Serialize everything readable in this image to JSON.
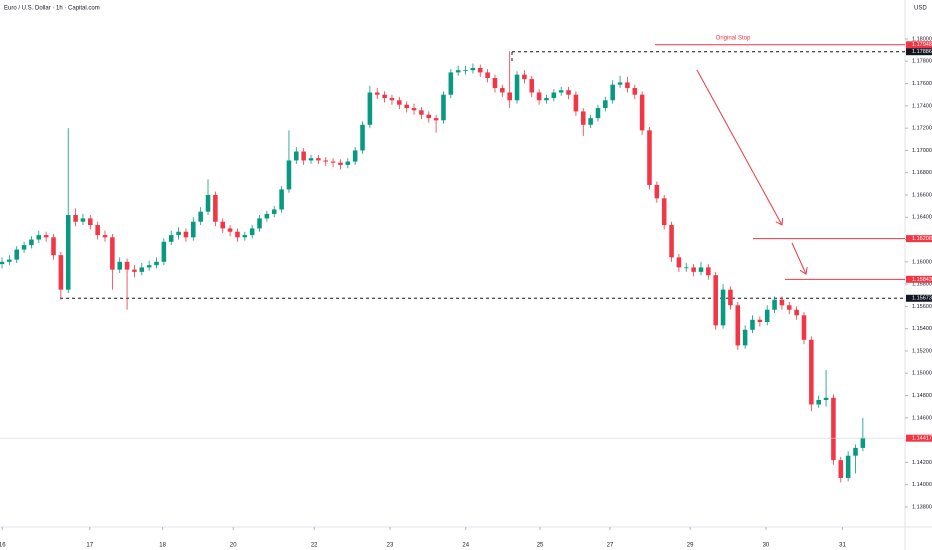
{
  "chart_data": {
    "type": "candlestick",
    "title": "Euro / U.S. Dollar · 1h · Capital.com",
    "currency": "USD",
    "up_color": "#089981",
    "down_color": "#f23645",
    "ylim": [
      1.1362,
      1.1835
    ],
    "xlim": [
      0,
      123
    ],
    "yticks": [
      {
        "value": 1.138,
        "label": "1.13800"
      },
      {
        "value": 1.14,
        "label": "1.14000"
      },
      {
        "value": 1.142,
        "label": "1.14200"
      },
      {
        "value": 1.144,
        "label": "1.14400"
      },
      {
        "value": 1.146,
        "label": "1.14600"
      },
      {
        "value": 1.148,
        "label": "1.14800"
      },
      {
        "value": 1.15,
        "label": "1.15000"
      },
      {
        "value": 1.152,
        "label": "1.15200"
      },
      {
        "value": 1.154,
        "label": "1.15400"
      },
      {
        "value": 1.156,
        "label": "1.15600"
      },
      {
        "value": 1.158,
        "label": "1.15800"
      },
      {
        "value": 1.16,
        "label": "1.16000"
      },
      {
        "value": 1.162,
        "label": "1.16200"
      },
      {
        "value": 1.164,
        "label": "1.16400"
      },
      {
        "value": 1.166,
        "label": "1.16600"
      },
      {
        "value": 1.168,
        "label": "1.16800"
      },
      {
        "value": 1.17,
        "label": "1.17000"
      },
      {
        "value": 1.172,
        "label": "1.17200"
      },
      {
        "value": 1.174,
        "label": "1.17400"
      },
      {
        "value": 1.176,
        "label": "1.17600"
      },
      {
        "value": 1.178,
        "label": "1.17800"
      },
      {
        "value": 1.18,
        "label": "1.18000"
      }
    ],
    "xticks": [
      {
        "value": 0.3,
        "label": "16"
      },
      {
        "value": 12.2,
        "label": "17"
      },
      {
        "value": 22.1,
        "label": "18"
      },
      {
        "value": 31.7,
        "label": "20"
      },
      {
        "value": 42.7,
        "label": "22"
      },
      {
        "value": 53,
        "label": "23"
      },
      {
        "value": 63.3,
        "label": "24"
      },
      {
        "value": 73.4,
        "label": "25"
      },
      {
        "value": 82.9,
        "label": "27"
      },
      {
        "value": 93.8,
        "label": "29"
      },
      {
        "value": 104.1,
        "label": "30"
      },
      {
        "value": 114.5,
        "label": "31"
      }
    ],
    "levels": [
      {
        "value": 1.17948,
        "color": "#f23645",
        "style": "solid",
        "annotation": "Original Stop"
      },
      {
        "value": 1.17886,
        "color": "#131722",
        "style": "dashed"
      },
      {
        "value": 1.16208,
        "color": "#f23645",
        "style": "solid"
      },
      {
        "value": 1.15843,
        "color": "#f23645",
        "style": "solid"
      },
      {
        "value": 1.15673,
        "color": "#131722",
        "style": "dashed"
      }
    ],
    "last_price": 1.14417,
    "candles": [
      [
        1.1598,
        1.1604,
        1.1594,
        1.16
      ],
      [
        1.16,
        1.1606,
        1.1597,
        1.1602
      ],
      [
        1.1602,
        1.1614,
        1.1599,
        1.1611
      ],
      [
        1.1611,
        1.1618,
        1.1608,
        1.1615
      ],
      [
        1.1615,
        1.1623,
        1.1612,
        1.162
      ],
      [
        1.162,
        1.1628,
        1.1617,
        1.1624
      ],
      [
        1.1624,
        1.1627,
        1.1618,
        1.1622
      ],
      [
        1.1622,
        1.1625,
        1.1602,
        1.1606
      ],
      [
        1.1606,
        1.1609,
        1.1566,
        1.1575
      ],
      [
        1.1575,
        1.172,
        1.1572,
        1.1642
      ],
      [
        1.1642,
        1.1648,
        1.1632,
        1.1636
      ],
      [
        1.1636,
        1.1643,
        1.1633,
        1.1639
      ],
      [
        1.1639,
        1.1642,
        1.1629,
        1.1633
      ],
      [
        1.1633,
        1.1636,
        1.162,
        1.1624
      ],
      [
        1.1624,
        1.1628,
        1.1618,
        1.1622
      ],
      [
        1.1622,
        1.1625,
        1.1575,
        1.1593
      ],
      [
        1.1593,
        1.1604,
        1.159,
        1.16
      ],
      [
        1.16,
        1.1603,
        1.1557,
        1.1593
      ],
      [
        1.1593,
        1.1597,
        1.1586,
        1.1591
      ],
      [
        1.1591,
        1.1599,
        1.1588,
        1.1595
      ],
      [
        1.1595,
        1.1601,
        1.1592,
        1.1597
      ],
      [
        1.1597,
        1.1604,
        1.1594,
        1.16
      ],
      [
        1.16,
        1.1621,
        1.1597,
        1.1618
      ],
      [
        1.1618,
        1.1628,
        1.1615,
        1.1624
      ],
      [
        1.1624,
        1.1631,
        1.162,
        1.1627
      ],
      [
        1.1627,
        1.163,
        1.1618,
        1.1622
      ],
      [
        1.1622,
        1.164,
        1.1619,
        1.1636
      ],
      [
        1.1636,
        1.1649,
        1.1633,
        1.1645
      ],
      [
        1.1645,
        1.1674,
        1.1642,
        1.166
      ],
      [
        1.166,
        1.1663,
        1.1632,
        1.1636
      ],
      [
        1.1636,
        1.1639,
        1.1626,
        1.163
      ],
      [
        1.163,
        1.1633,
        1.1623,
        1.1627
      ],
      [
        1.1627,
        1.163,
        1.1618,
        1.1622
      ],
      [
        1.1622,
        1.1627,
        1.1619,
        1.1624
      ],
      [
        1.1624,
        1.1633,
        1.1621,
        1.163
      ],
      [
        1.163,
        1.1642,
        1.1627,
        1.1639
      ],
      [
        1.1639,
        1.1646,
        1.1636,
        1.1643
      ],
      [
        1.1643,
        1.165,
        1.164,
        1.1647
      ],
      [
        1.1647,
        1.1668,
        1.1644,
        1.1665
      ],
      [
        1.1665,
        1.1718,
        1.1662,
        1.1691
      ],
      [
        1.1691,
        1.1703,
        1.1688,
        1.1699
      ],
      [
        1.1699,
        1.1702,
        1.1687,
        1.1691
      ],
      [
        1.1691,
        1.1696,
        1.1688,
        1.1693
      ],
      [
        1.1693,
        1.1696,
        1.1688,
        1.1691
      ],
      [
        1.1691,
        1.1694,
        1.1686,
        1.169
      ],
      [
        1.169,
        1.1693,
        1.1685,
        1.1689
      ],
      [
        1.1689,
        1.1692,
        1.1683,
        1.1687
      ],
      [
        1.1687,
        1.1693,
        1.1684,
        1.169
      ],
      [
        1.169,
        1.1703,
        1.1687,
        1.17
      ],
      [
        1.17,
        1.1726,
        1.1697,
        1.1723
      ],
      [
        1.1723,
        1.1758,
        1.172,
        1.1752
      ],
      [
        1.1752,
        1.1756,
        1.1746,
        1.175
      ],
      [
        1.175,
        1.1753,
        1.1743,
        1.1747
      ],
      [
        1.1747,
        1.175,
        1.1741,
        1.1745
      ],
      [
        1.1745,
        1.1748,
        1.1737,
        1.1741
      ],
      [
        1.1741,
        1.1744,
        1.1734,
        1.1738
      ],
      [
        1.1738,
        1.1742,
        1.1732,
        1.1736
      ],
      [
        1.1736,
        1.1739,
        1.1728,
        1.1732
      ],
      [
        1.1732,
        1.1735,
        1.1725,
        1.1729
      ],
      [
        1.1729,
        1.1732,
        1.1716,
        1.1727
      ],
      [
        1.1727,
        1.1753,
        1.1724,
        1.175
      ],
      [
        1.175,
        1.1773,
        1.1747,
        1.177
      ],
      [
        1.177,
        1.1776,
        1.1767,
        1.1772
      ],
      [
        1.1772,
        1.1776,
        1.1768,
        1.1772
      ],
      [
        1.1772,
        1.1778,
        1.1769,
        1.1774
      ],
      [
        1.1774,
        1.1777,
        1.1766,
        1.177
      ],
      [
        1.177,
        1.1773,
        1.1761,
        1.1765
      ],
      [
        1.1765,
        1.1768,
        1.1752,
        1.1756
      ],
      [
        1.1756,
        1.1759,
        1.1748,
        1.1752
      ],
      [
        1.1752,
        1.1789,
        1.1738,
        1.1745
      ],
      [
        1.1745,
        1.1771,
        1.1742,
        1.1768
      ],
      [
        1.1768,
        1.1772,
        1.176,
        1.1764
      ],
      [
        1.1764,
        1.1767,
        1.1748,
        1.1752
      ],
      [
        1.1752,
        1.1755,
        1.1741,
        1.1745
      ],
      [
        1.1745,
        1.175,
        1.1742,
        1.1747
      ],
      [
        1.1747,
        1.1755,
        1.1744,
        1.1752
      ],
      [
        1.1752,
        1.1757,
        1.1749,
        1.1754
      ],
      [
        1.1754,
        1.1757,
        1.1746,
        1.175
      ],
      [
        1.175,
        1.1753,
        1.1731,
        1.1735
      ],
      [
        1.1735,
        1.1738,
        1.1713,
        1.1723
      ],
      [
        1.1723,
        1.1732,
        1.172,
        1.1729
      ],
      [
        1.1729,
        1.1741,
        1.1726,
        1.1738
      ],
      [
        1.1738,
        1.1748,
        1.1735,
        1.1745
      ],
      [
        1.1745,
        1.1763,
        1.1742,
        1.1759
      ],
      [
        1.1759,
        1.1767,
        1.1756,
        1.1761
      ],
      [
        1.1761,
        1.1766,
        1.1752,
        1.1756
      ],
      [
        1.1756,
        1.1759,
        1.1746,
        1.175
      ],
      [
        1.175,
        1.1753,
        1.1714,
        1.1718
      ],
      [
        1.1718,
        1.1721,
        1.1665,
        1.1669
      ],
      [
        1.1669,
        1.1672,
        1.1653,
        1.1657
      ],
      [
        1.1657,
        1.166,
        1.1629,
        1.1633
      ],
      [
        1.1633,
        1.1636,
        1.16,
        1.1604
      ],
      [
        1.1604,
        1.1607,
        1.1591,
        1.1595
      ],
      [
        1.1595,
        1.1599,
        1.1591,
        1.1595
      ],
      [
        1.1595,
        1.1598,
        1.1587,
        1.1591
      ],
      [
        1.1591,
        1.16,
        1.1588,
        1.1595
      ],
      [
        1.1595,
        1.1598,
        1.1584,
        1.1588
      ],
      [
        1.1588,
        1.1591,
        1.1539,
        1.1543
      ],
      [
        1.1543,
        1.158,
        1.154,
        1.1575
      ],
      [
        1.1575,
        1.1578,
        1.1557,
        1.1561
      ],
      [
        1.1561,
        1.1564,
        1.1521,
        1.1525
      ],
      [
        1.1525,
        1.1543,
        1.1522,
        1.1539
      ],
      [
        1.1539,
        1.1552,
        1.1536,
        1.1548
      ],
      [
        1.1548,
        1.1551,
        1.1542,
        1.1546
      ],
      [
        1.1546,
        1.1561,
        1.1543,
        1.1557
      ],
      [
        1.1557,
        1.1569,
        1.1554,
        1.1566
      ],
      [
        1.1566,
        1.1569,
        1.1557,
        1.1561
      ],
      [
        1.1561,
        1.1564,
        1.1553,
        1.1557
      ],
      [
        1.1557,
        1.156,
        1.1548,
        1.1552
      ],
      [
        1.1552,
        1.1555,
        1.1526,
        1.153
      ],
      [
        1.153,
        1.1533,
        1.1466,
        1.1472
      ],
      [
        1.1472,
        1.148,
        1.1469,
        1.1476
      ],
      [
        1.1476,
        1.1503,
        1.147,
        1.1478
      ],
      [
        1.1478,
        1.1481,
        1.1418,
        1.1422
      ],
      [
        1.1422,
        1.1425,
        1.1402,
        1.1406
      ],
      [
        1.1406,
        1.143,
        1.1403,
        1.1426
      ],
      [
        1.1426,
        1.1436,
        1.141,
        1.1433
      ],
      [
        1.1433,
        1.146,
        1.143,
        1.1442
      ]
    ]
  }
}
